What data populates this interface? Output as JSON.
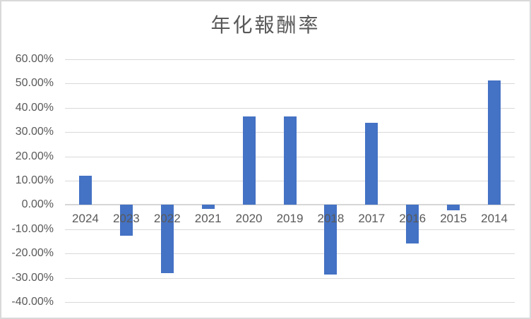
{
  "chart": {
    "title": "年化報酬率",
    "colors": {
      "bar": "#4472C4",
      "gridline": "#D9D9D9",
      "zero_axis_line": "#D6D6D6",
      "labels": "#595959",
      "title": "#595959",
      "border": "#D9D9D9",
      "background": "#FFFFFF"
    }
  },
  "chart_data": {
    "type": "bar",
    "title": "年化報酬率",
    "categories": [
      "2024",
      "2023",
      "2022",
      "2021",
      "2020",
      "2019",
      "2018",
      "2017",
      "2016",
      "2015",
      "2014"
    ],
    "values": [
      11.9,
      -12.8,
      -28.0,
      -1.5,
      36.5,
      36.4,
      -28.7,
      33.7,
      -15.9,
      -2.3,
      51.4
    ],
    "value_unit": "percent",
    "series_name": "年化報酬率",
    "xlabel": "",
    "ylabel": "",
    "ylim": [
      -40,
      60
    ],
    "ytick_step": 10,
    "ytick_labels_top_to_bottom": [
      "60.00%",
      "50.00%",
      "40.00%",
      "30.00%",
      "20.00%",
      "10.00%",
      "0.00%",
      "-10.00%",
      "-20.00%",
      "-30.00%",
      "-40.00%"
    ],
    "grid": true,
    "legend": false,
    "xlabel_position": "below-zero-line"
  }
}
